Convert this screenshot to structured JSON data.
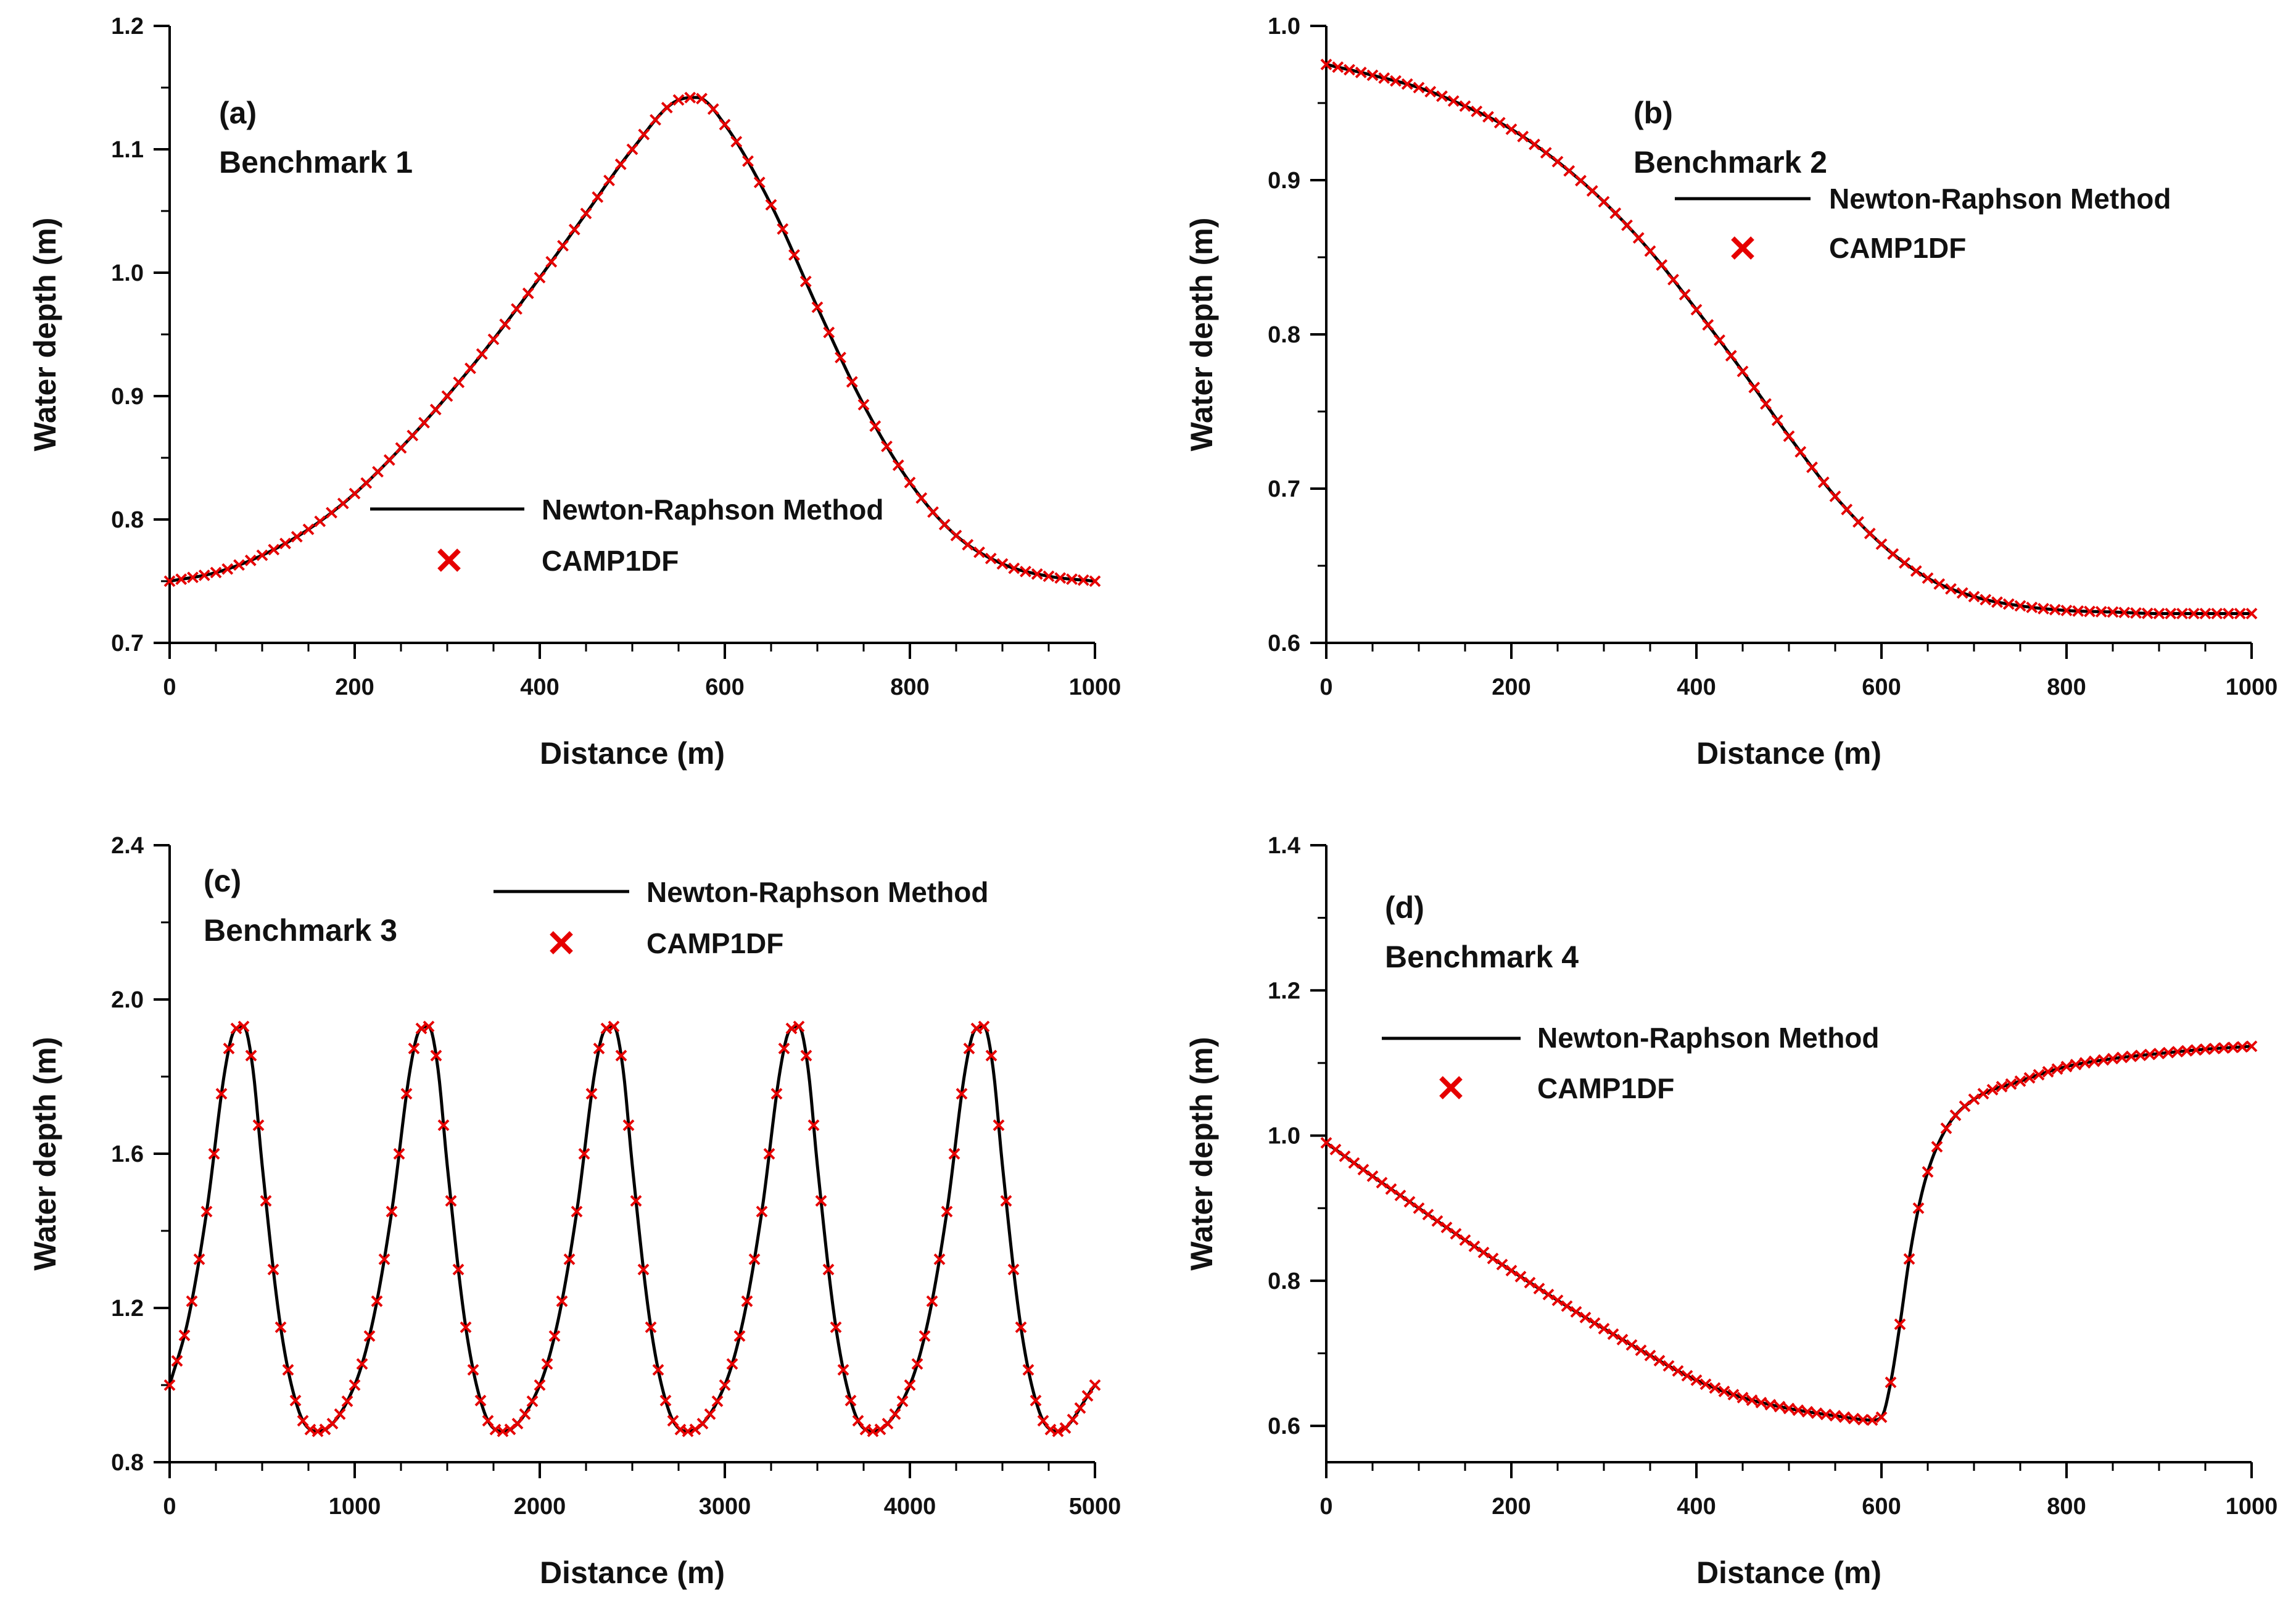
{
  "chart_data": [
    {
      "type": "line",
      "panel_label": "(a)",
      "title": "Benchmark 1",
      "xlabel": "Distance (m)",
      "ylabel": "Water depth (m)",
      "xlim": [
        0,
        1000
      ],
      "ylim": [
        0.7,
        1.2
      ],
      "xticks": [
        0,
        200,
        400,
        600,
        800,
        1000
      ],
      "yticks": [
        0.7,
        0.8,
        0.9,
        1.0,
        1.1,
        1.2
      ],
      "xtick_labels": [
        "0",
        "200",
        "400",
        "600",
        "800",
        "1000"
      ],
      "ytick_labels": [
        "0.7",
        "0.8",
        "0.9",
        "1.0",
        "1.1",
        "1.2"
      ],
      "x_minor_step": 50,
      "y_minor_step": 0.05,
      "marker_x_step": 12.5,
      "legend": {
        "line_label": "Newton-Raphson Method",
        "marker_label": "CAMP1DF",
        "placement": "center-bottom"
      },
      "series": [
        {
          "name": "Newton-Raphson Method",
          "style": "line",
          "color": "#000000",
          "x": [
            0,
            50,
            100,
            150,
            200,
            250,
            300,
            350,
            400,
            450,
            500,
            550,
            570,
            600,
            650,
            700,
            750,
            800,
            850,
            900,
            950,
            1000
          ],
          "y": [
            0.75,
            0.757,
            0.771,
            0.792,
            0.821,
            0.858,
            0.9,
            0.946,
            0.996,
            1.048,
            1.1,
            1.14,
            1.142,
            1.12,
            1.055,
            0.972,
            0.893,
            0.83,
            0.787,
            0.764,
            0.754,
            0.75
          ]
        },
        {
          "name": "CAMP1DF",
          "style": "marker-x",
          "color": "#e60000",
          "x": [
            0,
            50,
            100,
            150,
            200,
            250,
            300,
            350,
            400,
            450,
            500,
            550,
            570,
            600,
            650,
            700,
            750,
            800,
            850,
            900,
            950,
            1000
          ],
          "y": [
            0.75,
            0.757,
            0.771,
            0.792,
            0.821,
            0.858,
            0.9,
            0.946,
            0.996,
            1.048,
            1.1,
            1.14,
            1.142,
            1.12,
            1.055,
            0.972,
            0.893,
            0.83,
            0.787,
            0.764,
            0.754,
            0.75
          ]
        }
      ]
    },
    {
      "type": "line",
      "panel_label": "(b)",
      "title": "Benchmark 2",
      "xlabel": "Distance (m)",
      "ylabel": "Water depth (m)",
      "xlim": [
        0,
        1000
      ],
      "ylim": [
        0.6,
        1.0
      ],
      "xticks": [
        0,
        200,
        400,
        600,
        800,
        1000
      ],
      "yticks": [
        0.6,
        0.7,
        0.8,
        0.9,
        1.0
      ],
      "xtick_labels": [
        "0",
        "200",
        "400",
        "600",
        "800",
        "1000"
      ],
      "ytick_labels": [
        "0.6",
        "0.7",
        "0.8",
        "0.9",
        "1.0"
      ],
      "x_minor_step": 50,
      "y_minor_step": 0.05,
      "marker_x_step": 12.5,
      "legend": {
        "line_label": "Newton-Raphson Method",
        "marker_label": "CAMP1DF",
        "placement": "top-right"
      },
      "series": [
        {
          "name": "Newton-Raphson Method",
          "style": "line",
          "color": "#000000",
          "x": [
            0,
            50,
            100,
            150,
            200,
            250,
            300,
            350,
            400,
            450,
            500,
            550,
            600,
            650,
            700,
            750,
            800,
            850,
            900,
            950,
            1000
          ],
          "y": [
            0.975,
            0.968,
            0.96,
            0.948,
            0.933,
            0.912,
            0.886,
            0.854,
            0.816,
            0.776,
            0.734,
            0.695,
            0.664,
            0.642,
            0.63,
            0.624,
            0.621,
            0.62,
            0.619,
            0.619,
            0.619
          ]
        },
        {
          "name": "CAMP1DF",
          "style": "marker-x",
          "color": "#e60000",
          "x": [
            0,
            50,
            100,
            150,
            200,
            250,
            300,
            350,
            400,
            450,
            500,
            550,
            600,
            650,
            700,
            750,
            800,
            850,
            900,
            950,
            1000
          ],
          "y": [
            0.975,
            0.968,
            0.96,
            0.948,
            0.933,
            0.912,
            0.886,
            0.854,
            0.816,
            0.776,
            0.734,
            0.695,
            0.664,
            0.642,
            0.63,
            0.624,
            0.621,
            0.62,
            0.619,
            0.619,
            0.619
          ]
        }
      ]
    },
    {
      "type": "line",
      "panel_label": "(c)",
      "title": "Benchmark 3",
      "xlabel": "Distance (m)",
      "ylabel": "Water depth (m)",
      "xlim": [
        0,
        5000
      ],
      "ylim": [
        0.8,
        2.4
      ],
      "xticks": [
        0,
        1000,
        2000,
        3000,
        4000,
        5000
      ],
      "yticks": [
        0.8,
        1.2,
        1.6,
        2.0,
        2.4
      ],
      "xtick_labels": [
        "0",
        "1000",
        "2000",
        "3000",
        "4000",
        "5000"
      ],
      "ytick_labels": [
        "0.8",
        "1.2",
        "1.6",
        "2.0",
        "2.4"
      ],
      "x_minor_step": 250,
      "y_minor_step": 0.2,
      "marker_x_step": 40,
      "legend": {
        "line_label": "Newton-Raphson Method",
        "marker_label": "CAMP1DF",
        "placement": "top-center"
      },
      "series": [
        {
          "name": "Newton-Raphson Method",
          "style": "line",
          "color": "#000000",
          "x": [
            0,
            100,
            200,
            300,
            350,
            400,
            450,
            500,
            600,
            700,
            800,
            1000,
            1100,
            1200,
            1300,
            1350,
            1400,
            1450,
            1500,
            1600,
            1700,
            1800,
            2000,
            2100,
            2200,
            2300,
            2350,
            2400,
            2450,
            2500,
            2600,
            2700,
            2800,
            3000,
            3100,
            3200,
            3300,
            3350,
            3400,
            3450,
            3500,
            3600,
            3700,
            3800,
            4000,
            4100,
            4200,
            4300,
            4350,
            4400,
            4450,
            4500,
            4600,
            4700,
            4800,
            5000
          ],
          "y": [
            1.0,
            1.17,
            1.45,
            1.82,
            1.92,
            1.93,
            1.82,
            1.57,
            1.15,
            0.93,
            0.88,
            1.0,
            1.17,
            1.45,
            1.82,
            1.92,
            1.93,
            1.82,
            1.57,
            1.15,
            0.93,
            0.88,
            1.0,
            1.17,
            1.45,
            1.82,
            1.92,
            1.93,
            1.82,
            1.57,
            1.15,
            0.93,
            0.88,
            1.0,
            1.17,
            1.45,
            1.82,
            1.92,
            1.93,
            1.82,
            1.57,
            1.15,
            0.93,
            0.88,
            1.0,
            1.17,
            1.45,
            1.82,
            1.92,
            1.93,
            1.82,
            1.57,
            1.15,
            0.93,
            0.88,
            1.0
          ]
        },
        {
          "name": "CAMP1DF",
          "style": "marker-x",
          "color": "#e60000",
          "x": [
            0,
            100,
            200,
            300,
            350,
            400,
            450,
            500,
            600,
            700,
            800,
            1000,
            1100,
            1200,
            1300,
            1350,
            1400,
            1450,
            1500,
            1600,
            1700,
            1800,
            2000,
            2100,
            2200,
            2300,
            2350,
            2400,
            2450,
            2500,
            2600,
            2700,
            2800,
            3000,
            3100,
            3200,
            3300,
            3350,
            3400,
            3450,
            3500,
            3600,
            3700,
            3800,
            4000,
            4100,
            4200,
            4300,
            4350,
            4400,
            4450,
            4500,
            4600,
            4700,
            4800,
            5000
          ],
          "y": [
            1.0,
            1.17,
            1.45,
            1.82,
            1.92,
            1.93,
            1.82,
            1.57,
            1.15,
            0.93,
            0.88,
            1.0,
            1.17,
            1.45,
            1.82,
            1.92,
            1.93,
            1.82,
            1.57,
            1.15,
            0.93,
            0.88,
            1.0,
            1.17,
            1.45,
            1.82,
            1.92,
            1.93,
            1.82,
            1.57,
            1.15,
            0.93,
            0.88,
            1.0,
            1.17,
            1.45,
            1.82,
            1.92,
            1.93,
            1.82,
            1.57,
            1.15,
            0.93,
            0.88,
            1.0,
            1.17,
            1.45,
            1.82,
            1.92,
            1.93,
            1.82,
            1.57,
            1.15,
            0.93,
            0.88,
            1.0
          ]
        }
      ]
    },
    {
      "type": "line",
      "panel_label": "(d)",
      "title": "Benchmark 4",
      "xlabel": "Distance (m)",
      "ylabel": "Water depth (m)",
      "xlim": [
        0,
        1000
      ],
      "ylim": [
        0.55,
        1.4
      ],
      "xticks": [
        0,
        200,
        400,
        600,
        800,
        1000
      ],
      "yticks": [
        0.6,
        0.8,
        1.0,
        1.2,
        1.4
      ],
      "xtick_labels": [
        "0",
        "200",
        "400",
        "600",
        "800",
        "1000"
      ],
      "ytick_labels": [
        "0.6",
        "0.8",
        "1.0",
        "1.2",
        "1.4"
      ],
      "x_minor_step": 50,
      "y_minor_step": 0.1,
      "marker_x_step": 10,
      "legend": {
        "line_label": "Newton-Raphson Method",
        "marker_label": "CAMP1DF",
        "placement": "top-left"
      },
      "series": [
        {
          "name": "Newton-Raphson Method",
          "style": "line",
          "color": "#000000",
          "x": [
            0,
            50,
            100,
            150,
            200,
            250,
            300,
            350,
            400,
            450,
            500,
            550,
            590,
            600,
            610,
            620,
            630,
            640,
            650,
            670,
            700,
            750,
            800,
            850,
            900,
            950,
            1000
          ],
          "y": [
            0.99,
            0.944,
            0.9,
            0.856,
            0.814,
            0.773,
            0.734,
            0.697,
            0.663,
            0.639,
            0.624,
            0.614,
            0.608,
            0.612,
            0.66,
            0.74,
            0.83,
            0.9,
            0.95,
            1.01,
            1.05,
            1.075,
            1.095,
            1.106,
            1.113,
            1.119,
            1.123
          ]
        },
        {
          "name": "CAMP1DF",
          "style": "marker-x",
          "color": "#e60000",
          "x": [
            0,
            50,
            100,
            150,
            200,
            250,
            300,
            350,
            400,
            450,
            500,
            550,
            590,
            600,
            610,
            620,
            630,
            640,
            650,
            670,
            700,
            750,
            800,
            850,
            900,
            950,
            1000
          ],
          "y": [
            0.99,
            0.944,
            0.9,
            0.856,
            0.814,
            0.773,
            0.734,
            0.697,
            0.663,
            0.639,
            0.624,
            0.614,
            0.608,
            0.612,
            0.66,
            0.74,
            0.83,
            0.9,
            0.95,
            1.01,
            1.05,
            1.075,
            1.095,
            1.106,
            1.113,
            1.119,
            1.123
          ]
        }
      ]
    }
  ]
}
